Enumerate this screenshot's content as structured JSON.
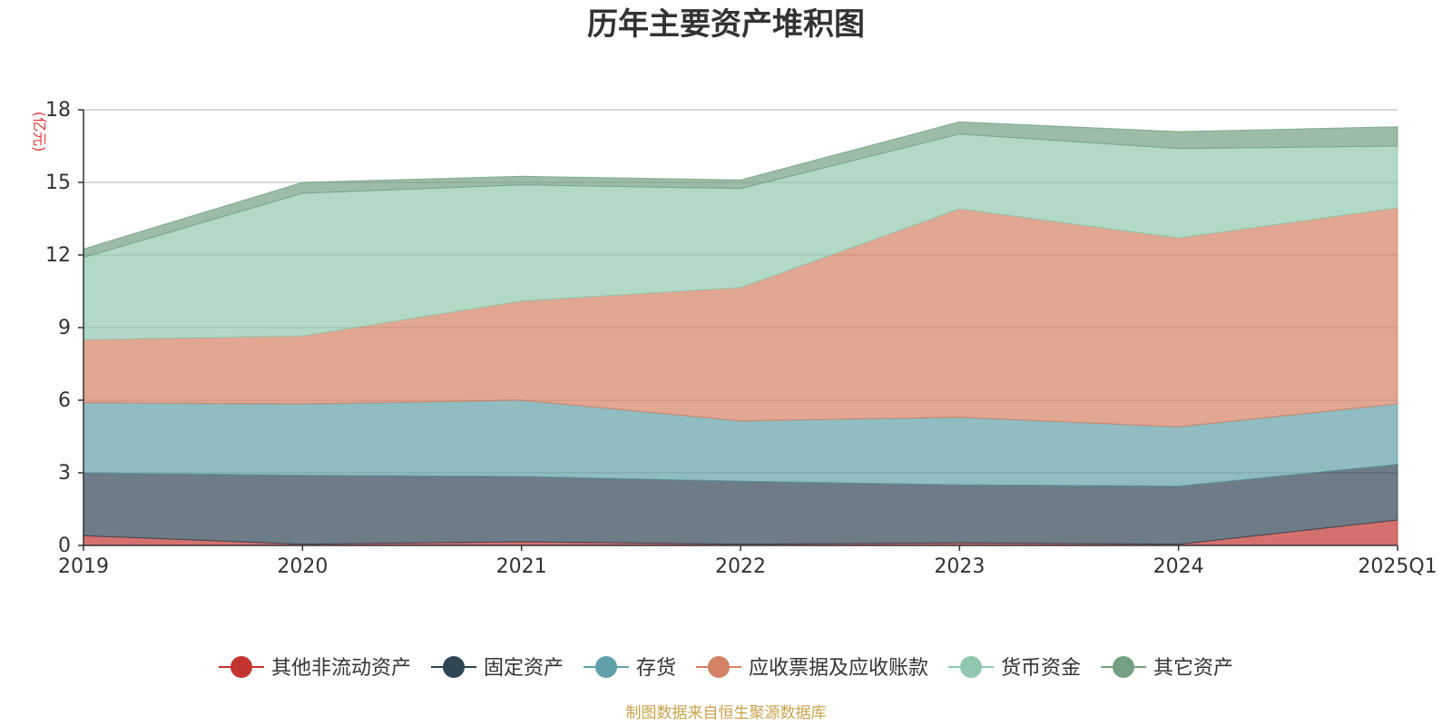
{
  "chart_data": {
    "type": "area",
    "stacked": true,
    "title": "历年主要资产堆积图",
    "ylabel": "(亿元)",
    "xlabel": "",
    "categories": [
      "2019",
      "2020",
      "2021",
      "2022",
      "2023",
      "2024",
      "2025Q1"
    ],
    "ylim": [
      0,
      18
    ],
    "yticks": [
      0,
      3,
      6,
      9,
      12,
      15,
      18
    ],
    "grid": true,
    "legend_position": "bottom",
    "series": [
      {
        "name": "其他非流动资产",
        "color": "#c23531",
        "values": [
          0.4,
          0.05,
          0.15,
          0.05,
          0.1,
          0.05,
          1.05
        ]
      },
      {
        "name": "固定资产",
        "color": "#2f4554",
        "values": [
          2.6,
          2.85,
          2.7,
          2.6,
          2.4,
          2.4,
          2.3
        ]
      },
      {
        "name": "存货",
        "color": "#61a0a8",
        "values": [
          2.9,
          2.95,
          3.15,
          2.5,
          2.8,
          2.45,
          2.5
        ]
      },
      {
        "name": "应收票据及应收账款",
        "color": "#d48265",
        "values": [
          2.6,
          2.8,
          4.1,
          5.5,
          8.6,
          7.8,
          8.1
        ]
      },
      {
        "name": "货币资金",
        "color": "#91c7ae",
        "values": [
          3.4,
          5.9,
          4.8,
          4.1,
          3.1,
          3.7,
          2.55
        ]
      },
      {
        "name": "其它资产",
        "color": "#749f83",
        "values": [
          0.35,
          0.45,
          0.35,
          0.35,
          0.5,
          0.7,
          0.8
        ]
      }
    ],
    "source": "制图数据来自恒生聚源数据库"
  }
}
